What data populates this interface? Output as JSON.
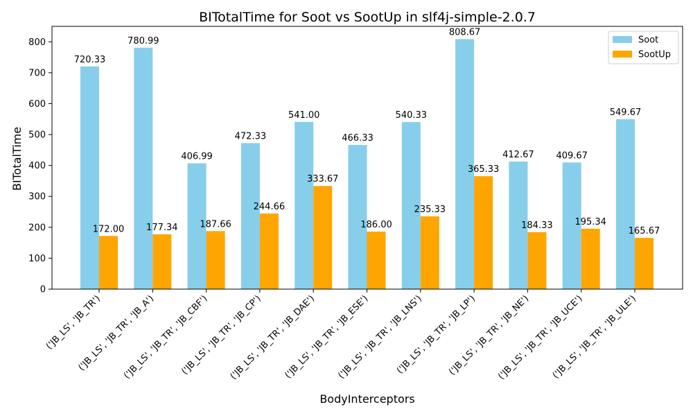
{
  "chart_data": {
    "type": "bar",
    "title": "BITotalTime for Soot vs SootUp in slf4j-simple-2.0.7",
    "xlabel": "BodyInterceptors",
    "ylabel": "BITotalTime",
    "ylim": [
      0,
      850
    ],
    "yticks": [
      0,
      100,
      200,
      300,
      400,
      500,
      600,
      700,
      800
    ],
    "legend_position": "top-right",
    "grid": false,
    "categories": [
      "('JB_LS', 'JB_TR')",
      "('JB_LS', 'JB_TR', 'JB_A')",
      "('JB_LS', 'JB_TR', 'JB_CBF')",
      "('JB_LS', 'JB_TR', 'JB_CP')",
      "('JB_LS', 'JB_TR', 'JB_DAE')",
      "('JB_LS', 'JB_TR', 'JB_ESE')",
      "('JB_LS', 'JB_TR', 'JB_LNS')",
      "('JB_LS', 'JB_TR', 'JB_LP')",
      "('JB_LS', 'JB_TR', 'JB_NE')",
      "('JB_LS', 'JB_TR', 'JB_UCE')",
      "('JB_LS', 'JB_TR', 'JB_ULE')"
    ],
    "series": [
      {
        "name": "Soot",
        "color": "#87ceeb",
        "values": [
          720.33,
          780.99,
          406.99,
          472.33,
          541.0,
          466.33,
          540.33,
          808.67,
          412.67,
          409.67,
          549.67
        ],
        "labels": [
          "720.33",
          "780.99",
          "406.99",
          "472.33",
          "541.00",
          "466.33",
          "540.33",
          "808.67",
          "412.67",
          "409.67",
          "549.67"
        ]
      },
      {
        "name": "SootUp",
        "color": "#ffa500",
        "values": [
          172.0,
          177.34,
          187.66,
          244.66,
          333.67,
          186.0,
          235.33,
          365.33,
          184.33,
          195.34,
          165.67
        ],
        "labels": [
          "172.00",
          "177.34",
          "187.66",
          "244.66",
          "333.67",
          "186.00",
          "235.33",
          "365.33",
          "184.33",
          "195.34",
          "165.67"
        ]
      }
    ]
  }
}
